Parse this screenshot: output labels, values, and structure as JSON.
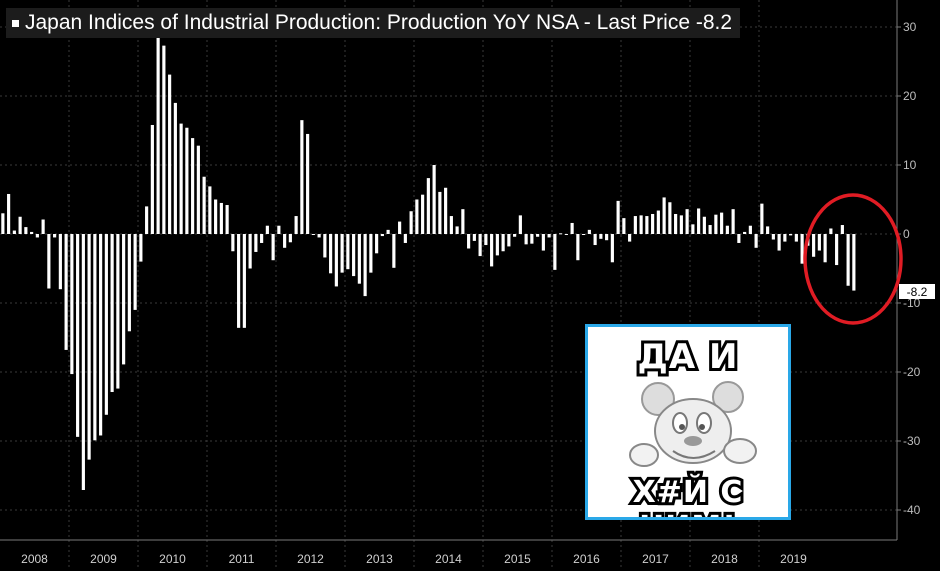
{
  "title": "Japan Indices of Industrial Production: Production YoY NSA - Last Price -8.2",
  "last_value_label": "-8.2",
  "highlight_color": "#e01c24",
  "meme": {
    "top_text": "ДА И",
    "bottom_text": "Х#Й С НИМ!",
    "icon": "cartoon-mouse-shrug-icon",
    "border_color": "#2aa8e8"
  },
  "chart_data": {
    "type": "bar",
    "title": "Japan Indices of Industrial Production: Production YoY NSA - Last Price -8.2",
    "xlabel": "",
    "ylabel": "",
    "ylim": [
      -42,
      33
    ],
    "yticks": [
      30,
      20,
      10,
      0,
      -10,
      -20,
      -30,
      -40
    ],
    "years": [
      "2008",
      "2009",
      "2010",
      "2011",
      "2012",
      "2013",
      "2014",
      "2015",
      "2016",
      "2017",
      "2018",
      "2019"
    ],
    "grid": true,
    "values": [
      3.0,
      5.8,
      0.5,
      2.5,
      1.0,
      0.3,
      -0.5,
      2.1,
      -7.9,
      -0.5,
      -8.0,
      -16.8,
      -20.3,
      -29.4,
      -37.1,
      -32.7,
      -29.9,
      -29.2,
      -26.2,
      -22.9,
      -22.4,
      -18.9,
      -14.1,
      -11.0,
      -4.0,
      4.0,
      15.8,
      29.0,
      27.3,
      23.1,
      19.0,
      16.0,
      15.4,
      13.9,
      12.8,
      8.3,
      6.9,
      5.0,
      4.5,
      4.2,
      -2.5,
      -13.6,
      -13.6,
      -5.0,
      -2.6,
      -1.3,
      1.2,
      -3.8,
      1.2,
      -2.0,
      -1.2,
      2.6,
      16.5,
      14.5,
      0.0,
      -0.5,
      -3.4,
      -5.7,
      -7.6,
      -5.6,
      -5.1,
      -6.1,
      -7.2,
      -9.0,
      -5.6,
      -2.8,
      -0.3,
      0.6,
      -4.9,
      1.8,
      -1.3,
      3.3,
      5.0,
      5.7,
      8.1,
      10.0,
      6.1,
      6.7,
      2.6,
      1.1,
      3.6,
      -2.1,
      -1.0,
      -3.2,
      -1.6,
      -4.7,
      -3.1,
      -2.5,
      -1.8,
      -0.4,
      2.7,
      -1.5,
      -1.4,
      -0.4,
      -2.4,
      -0.5,
      -5.2,
      0.1,
      -0.1,
      1.6,
      -3.8,
      -0.1,
      0.6,
      -1.6,
      -0.7,
      -0.9,
      -4.1,
      4.8,
      2.3,
      -1.1,
      2.6,
      2.7,
      2.6,
      2.9,
      3.4,
      5.3,
      4.6,
      2.9,
      2.7,
      3.6,
      1.4,
      3.7,
      2.5,
      1.3,
      2.8,
      3.1,
      1.2,
      3.6,
      -1.3,
      0.3,
      1.2,
      -2.0,
      4.4,
      1.1,
      -0.8,
      -2.4,
      -1.1,
      -0.2,
      -1.1,
      -4.3,
      -1.7,
      -3.3,
      -2.4,
      -4.1,
      0.8,
      -4.5,
      1.3,
      -7.5,
      -8.2
    ]
  }
}
